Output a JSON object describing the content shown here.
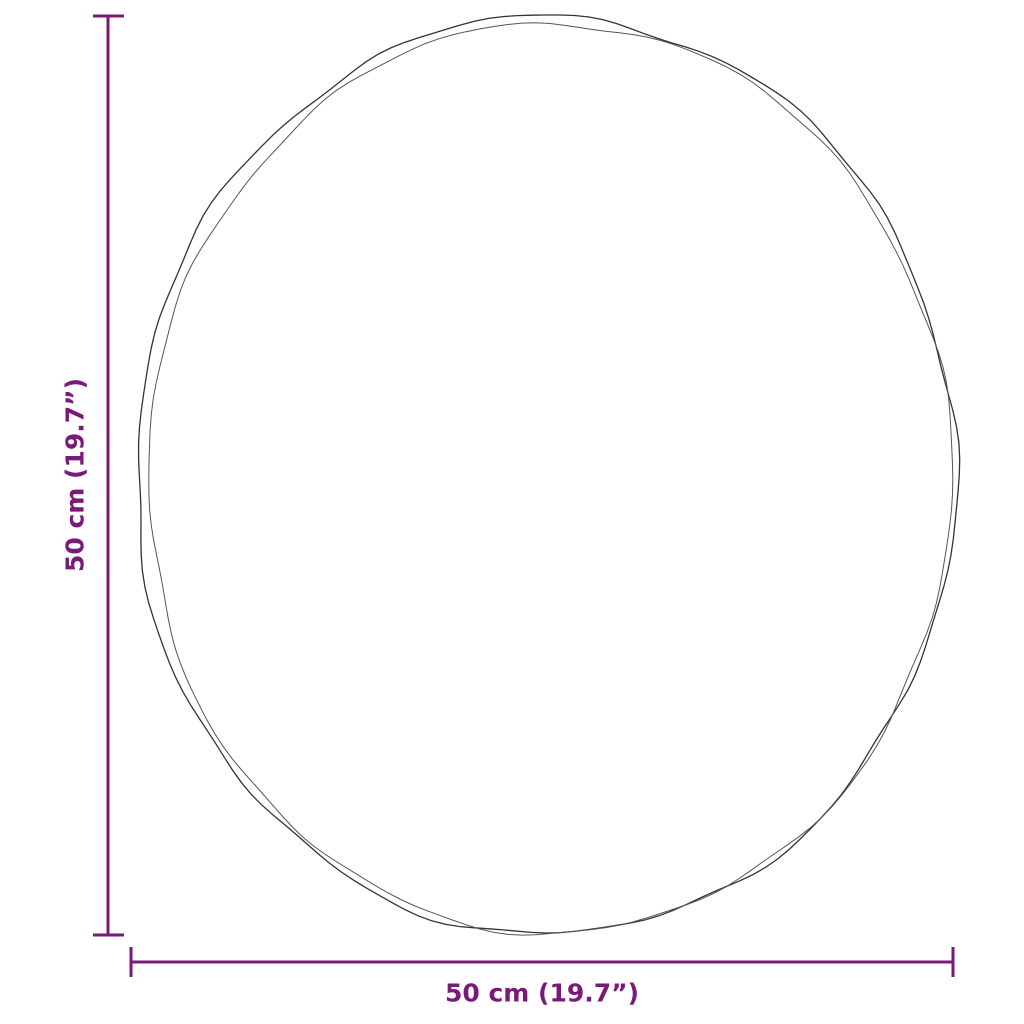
{
  "dimensions": {
    "width_label": "50 cm (19.7”)",
    "height_label": "50 cm (19.7”)"
  },
  "colors": {
    "dimension": "#7a1a78",
    "outline": "#333333"
  }
}
